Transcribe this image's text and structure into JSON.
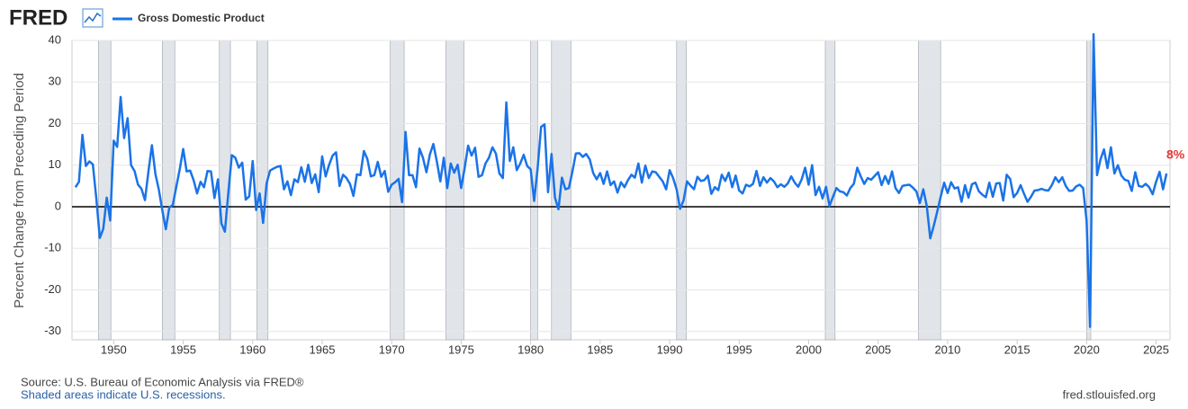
{
  "chart_data": {
    "type": "line",
    "brand": "FRED",
    "ylabel": "Percent Change from Preceding Period",
    "source": "Source: U.S. Bureau of Economic Analysis via FRED®",
    "note": "Shaded areas indicate U.S. recessions.",
    "site": "fred.stlouisfed.org",
    "xlim": [
      1947,
      2026
    ],
    "ylim": [
      -32,
      40
    ],
    "xticks": [
      1950,
      1955,
      1960,
      1965,
      1970,
      1975,
      1980,
      1985,
      1990,
      1995,
      2000,
      2005,
      2010,
      2015,
      2020,
      2025
    ],
    "yticks": [
      -30,
      -20,
      -10,
      0,
      10,
      20,
      30,
      40
    ],
    "grid": true,
    "recessions": [
      [
        1948.9,
        1949.8
      ],
      [
        1953.5,
        1954.4
      ],
      [
        1957.6,
        1958.4
      ],
      [
        1960.3,
        1961.1
      ],
      [
        1969.9,
        1970.9
      ],
      [
        1973.9,
        1975.2
      ],
      [
        1980.0,
        1980.5
      ],
      [
        1981.5,
        1982.9
      ],
      [
        1990.5,
        1991.2
      ],
      [
        2001.2,
        2001.9
      ],
      [
        2007.9,
        2009.5
      ],
      [
        2020.0,
        2020.3
      ]
    ],
    "x": [
      1947.25,
      1947.5,
      1947.75,
      1948,
      1948.25,
      1948.5,
      1948.75,
      1949,
      1949.25,
      1949.5,
      1949.75,
      1950,
      1950.25,
      1950.5,
      1950.75,
      1951,
      1951.25,
      1951.5,
      1951.75,
      1952,
      1952.25,
      1952.5,
      1952.75,
      1953,
      1953.25,
      1953.5,
      1953.75,
      1954,
      1954.25,
      1954.5,
      1954.75,
      1955,
      1955.25,
      1955.5,
      1955.75,
      1956,
      1956.25,
      1956.5,
      1956.75,
      1957,
      1957.25,
      1957.5,
      1957.75,
      1958,
      1958.25,
      1958.5,
      1958.75,
      1959,
      1959.25,
      1959.5,
      1959.75,
      1960,
      1960.25,
      1960.5,
      1960.75,
      1961,
      1961.25,
      1961.5,
      1961.75,
      1962,
      1962.25,
      1962.5,
      1962.75,
      1963,
      1963.25,
      1963.5,
      1963.75,
      1964,
      1964.25,
      1964.5,
      1964.75,
      1965,
      1965.25,
      1965.5,
      1965.75,
      1966,
      1966.25,
      1966.5,
      1966.75,
      1967,
      1967.25,
      1967.5,
      1967.75,
      1968,
      1968.25,
      1968.5,
      1968.75,
      1969,
      1969.25,
      1969.5,
      1969.75,
      1970,
      1970.25,
      1970.5,
      1970.75,
      1971,
      1971.25,
      1971.5,
      1971.75,
      1972,
      1972.25,
      1972.5,
      1972.75,
      1973,
      1973.25,
      1973.5,
      1973.75,
      1974,
      1974.25,
      1974.5,
      1974.75,
      1975,
      1975.25,
      1975.5,
      1975.75,
      1976,
      1976.25,
      1976.5,
      1976.75,
      1977,
      1977.25,
      1977.5,
      1977.75,
      1978,
      1978.25,
      1978.5,
      1978.75,
      1979,
      1979.25,
      1979.5,
      1979.75,
      1980,
      1980.25,
      1980.5,
      1980.75,
      1981,
      1981.25,
      1981.5,
      1981.75,
      1982,
      1982.25,
      1982.5,
      1982.75,
      1983,
      1983.25,
      1983.5,
      1983.75,
      1984,
      1984.25,
      1984.5,
      1984.75,
      1985,
      1985.25,
      1985.5,
      1985.75,
      1986,
      1986.25,
      1986.5,
      1986.75,
      1987,
      1987.25,
      1987.5,
      1987.75,
      1988,
      1988.25,
      1988.5,
      1988.75,
      1989,
      1989.25,
      1989.5,
      1989.75,
      1990,
      1990.25,
      1990.5,
      1990.75,
      1991,
      1991.25,
      1991.5,
      1991.75,
      1992,
      1992.25,
      1992.5,
      1992.75,
      1993,
      1993.25,
      1993.5,
      1993.75,
      1994,
      1994.25,
      1994.5,
      1994.75,
      1995,
      1995.25,
      1995.5,
      1995.75,
      1996,
      1996.25,
      1996.5,
      1996.75,
      1997,
      1997.25,
      1997.5,
      1997.75,
      1998,
      1998.25,
      1998.5,
      1998.75,
      1999,
      1999.25,
      1999.5,
      1999.75,
      2000,
      2000.25,
      2000.5,
      2000.75,
      2001,
      2001.25,
      2001.5,
      2001.75,
      2002,
      2002.25,
      2002.5,
      2002.75,
      2003,
      2003.25,
      2003.5,
      2003.75,
      2004,
      2004.25,
      2004.5,
      2004.75,
      2005,
      2005.25,
      2005.5,
      2005.75,
      2006,
      2006.25,
      2006.5,
      2006.75,
      2007,
      2007.25,
      2007.5,
      2007.75,
      2008,
      2008.25,
      2008.5,
      2008.75,
      2009,
      2009.25,
      2009.5,
      2009.75,
      2010,
      2010.25,
      2010.5,
      2010.75,
      2011,
      2011.25,
      2011.5,
      2011.75,
      2012,
      2012.25,
      2012.5,
      2012.75,
      2013,
      2013.25,
      2013.5,
      2013.75,
      2014,
      2014.25,
      2014.5,
      2014.75,
      2015,
      2015.25,
      2015.5,
      2015.75,
      2016,
      2016.25,
      2016.5,
      2016.75,
      2017,
      2017.25,
      2017.5,
      2017.75,
      2018,
      2018.25,
      2018.5,
      2018.75,
      2019,
      2019.25,
      2019.5,
      2019.75,
      2020,
      2020.25,
      2020.5,
      2020.75,
      2021,
      2021.25,
      2021.5,
      2021.75,
      2022,
      2022.25,
      2022.5,
      2022.75,
      2023,
      2023.25,
      2023.5,
      2023.75,
      2024,
      2024.25,
      2024.5,
      2024.75,
      2025,
      2025.25,
      2025.5,
      2025.75
    ],
    "series": [
      {
        "name": "Gross Domestic Product",
        "color": "#1a73e8",
        "values": [
          4.7,
          6.0,
          17.3,
          9.8,
          10.9,
          10.2,
          2.0,
          -7.5,
          -5.3,
          2.2,
          -3.3,
          15.9,
          14.4,
          26.4,
          16.5,
          21.3,
          10.0,
          8.6,
          5.3,
          4.3,
          1.6,
          8.5,
          14.8,
          7.9,
          4.1,
          -0.9,
          -5.4,
          -0.2,
          0.4,
          4.7,
          9.0,
          13.9,
          8.5,
          8.7,
          6.4,
          3.2,
          6.0,
          4.7,
          8.6,
          8.5,
          2.1,
          6.6,
          -4.0,
          -6.0,
          3.4,
          12.4,
          11.8,
          9.4,
          10.6,
          1.7,
          2.5,
          11.0,
          -0.8,
          3.2,
          -3.9,
          5.6,
          8.7,
          9.2,
          9.6,
          9.8,
          4.2,
          6.1,
          2.8,
          6.6,
          5.9,
          9.5,
          6.0,
          10.1,
          5.7,
          7.8,
          3.5,
          12.1,
          7.3,
          10.1,
          12.3,
          13.1,
          5.0,
          7.7,
          6.9,
          5.5,
          2.6,
          7.8,
          7.6,
          13.4,
          11.5,
          7.3,
          7.6,
          10.8,
          7.2,
          8.6,
          3.6,
          5.3,
          5.9,
          6.7,
          1.1,
          18.0,
          7.6,
          7.6,
          4.7,
          14.0,
          11.8,
          8.3,
          12.6,
          15.1,
          10.9,
          6.1,
          11.8,
          4.5,
          10.4,
          8.2,
          10.1,
          4.5,
          9.3,
          14.7,
          12.3,
          14.2,
          7.2,
          7.6,
          10.4,
          11.8,
          14.3,
          12.8,
          8.0,
          6.9,
          25.1,
          11.0,
          14.3,
          8.8,
          10.4,
          12.5,
          9.8,
          9.0,
          1.4,
          9.2,
          19.2,
          19.8,
          3.5,
          12.7,
          2.2,
          -0.6,
          7.0,
          4.2,
          4.5,
          8.4,
          12.8,
          12.9,
          12.0,
          12.7,
          11.4,
          8.1,
          6.6,
          8.1,
          5.5,
          8.5,
          5.2,
          6.1,
          3.4,
          5.9,
          4.7,
          6.4,
          7.7,
          7.0,
          10.4,
          5.8,
          9.9,
          6.9,
          8.5,
          8.3,
          7.2,
          6.1,
          4.2,
          8.8,
          6.9,
          4.2,
          -0.5,
          1.5,
          6.1,
          5.1,
          4.2,
          7.2,
          6.2,
          6.4,
          7.5,
          3.1,
          4.7,
          4.0,
          7.7,
          6.2,
          8.2,
          4.7,
          7.5,
          3.9,
          3.2,
          5.3,
          4.9,
          5.5,
          8.6,
          5.0,
          7.1,
          5.8,
          6.9,
          6.1,
          4.7,
          5.4,
          4.8,
          5.6,
          7.3,
          5.8,
          4.8,
          6.6,
          9.4,
          5.3,
          10.0,
          2.8,
          4.8,
          2.0,
          4.8,
          0.2,
          2.4,
          4.5,
          3.7,
          3.5,
          2.7,
          4.5,
          5.5,
          9.4,
          7.3,
          5.5,
          6.9,
          6.5,
          7.4,
          8.3,
          5.2,
          7.4,
          5.5,
          8.5,
          4.5,
          3.3,
          5.0,
          5.2,
          5.3,
          4.6,
          3.7,
          0.9,
          4.2,
          0.2,
          -7.6,
          -4.6,
          -1.2,
          2.4,
          5.8,
          3.3,
          5.9,
          4.4,
          4.7,
          1.2,
          5.2,
          2.2,
          5.4,
          5.8,
          3.7,
          2.9,
          2.3,
          5.8,
          2.4,
          5.6,
          5.7,
          1.5,
          7.7,
          6.7,
          2.3,
          3.3,
          5.2,
          3.1,
          1.2,
          2.4,
          3.9,
          4.0,
          4.3,
          4.0,
          3.9,
          5.2,
          7.1,
          5.9,
          7.1,
          5.0,
          3.8,
          3.9,
          4.9,
          5.3,
          4.5,
          -3.4,
          -28.9,
          41.5,
          7.6,
          11.4,
          13.8,
          9.3,
          14.3,
          8.0,
          10.0,
          7.5,
          6.5,
          6.2,
          3.8,
          8.3,
          5.0,
          4.8,
          5.5,
          4.7,
          3.0,
          6.0,
          8.4,
          4.2,
          8
        ]
      }
    ],
    "annotations": [
      {
        "text": "8%",
        "x": 2025.75,
        "y": 8
      }
    ]
  }
}
